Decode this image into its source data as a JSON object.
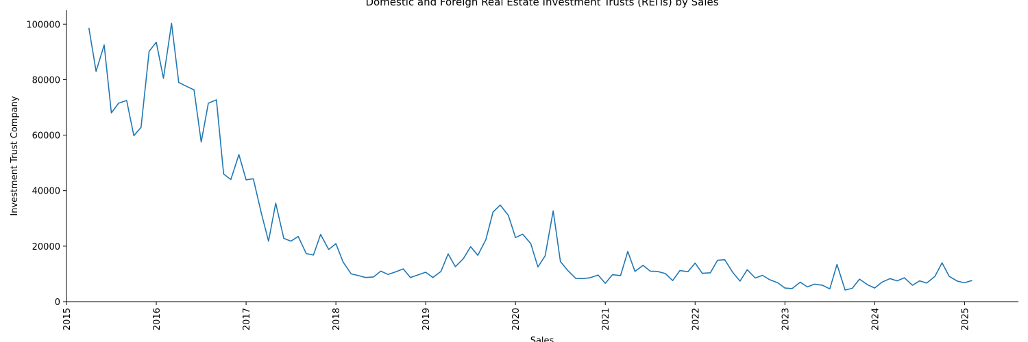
{
  "chart_data": {
    "type": "line",
    "title": "Domestic and Foreign Real Estate Investment Trusts (REITs) by Sales",
    "xlabel": "Sales",
    "ylabel": "Investment Trust Company",
    "xlim": [
      2015.0,
      2025.6
    ],
    "ylim": [
      0,
      105000
    ],
    "x_ticks": [
      2015,
      2016,
      2017,
      2018,
      2019,
      2020,
      2021,
      2022,
      2023,
      2024,
      2025
    ],
    "x_tick_labels": [
      "2015",
      "2016",
      "2017",
      "2018",
      "2019",
      "2020",
      "2021",
      "2022",
      "2023",
      "2024",
      "2025"
    ],
    "y_ticks": [
      0,
      20000,
      40000,
      60000,
      80000,
      100000
    ],
    "y_tick_labels": [
      "0",
      "20000",
      "40000",
      "60000",
      "80000",
      "100000"
    ],
    "grid": false,
    "series": [
      {
        "name": "Sales",
        "color": "#1f77b4",
        "x": [
          2015.25,
          2015.33,
          2015.42,
          2015.5,
          2015.58,
          2015.67,
          2015.75,
          2015.83,
          2015.92,
          2016.0,
          2016.08,
          2016.17,
          2016.25,
          2016.33,
          2016.42,
          2016.5,
          2016.58,
          2016.67,
          2016.75,
          2016.83,
          2016.92,
          2017.0,
          2017.08,
          2017.17,
          2017.25,
          2017.33,
          2017.42,
          2017.5,
          2017.58,
          2017.67,
          2017.75,
          2017.83,
          2017.92,
          2018.0,
          2018.08,
          2018.17,
          2018.25,
          2018.33,
          2018.42,
          2018.5,
          2018.58,
          2018.67,
          2018.75,
          2018.83,
          2018.92,
          2019.0,
          2019.08,
          2019.17,
          2019.25,
          2019.33,
          2019.42,
          2019.5,
          2019.58,
          2019.67,
          2019.75,
          2019.83,
          2019.92,
          2020.0,
          2020.08,
          2020.17,
          2020.25,
          2020.33,
          2020.42,
          2020.5,
          2020.58,
          2020.67,
          2020.75,
          2020.83,
          2020.92,
          2021.0,
          2021.08,
          2021.17,
          2021.25,
          2021.33,
          2021.42,
          2021.5,
          2021.58,
          2021.67,
          2021.75,
          2021.83,
          2021.92,
          2022.0,
          2022.08,
          2022.17,
          2022.25,
          2022.33,
          2022.42,
          2022.5,
          2022.58,
          2022.67,
          2022.75,
          2022.83,
          2022.92,
          2023.0,
          2023.08,
          2023.17,
          2023.25,
          2023.33,
          2023.42,
          2023.5,
          2023.58,
          2023.67,
          2023.75,
          2023.83,
          2023.92,
          2024.0,
          2024.08,
          2024.17,
          2024.25,
          2024.33,
          2024.42,
          2024.5,
          2024.58,
          2024.67,
          2024.75,
          2024.83,
          2024.92,
          2025.0,
          2025.08
        ],
        "y": [
          98500,
          83000,
          92500,
          68000,
          71500,
          72500,
          59800,
          62800,
          90200,
          93500,
          80500,
          100300,
          79000,
          77700,
          76300,
          57500,
          71500,
          72700,
          46000,
          44000,
          53000,
          43900,
          44300,
          31800,
          21800,
          35500,
          22800,
          21800,
          23500,
          17300,
          16800,
          24200,
          18800,
          20900,
          14300,
          10000,
          9400,
          8700,
          8900,
          11000,
          9800,
          10800,
          11800,
          8700,
          9700,
          10600,
          8700,
          10900,
          17200,
          12600,
          15500,
          19800,
          16700,
          22300,
          32300,
          34800,
          31100,
          23100,
          24300,
          20900,
          12500,
          16500,
          32700,
          14500,
          11300,
          8400,
          8300,
          8600,
          9600,
          6600,
          9700,
          9400,
          18100,
          10900,
          13100,
          11000,
          10900,
          10100,
          7600,
          11200,
          10800,
          13900,
          10200,
          10400,
          14900,
          15100,
          10500,
          7400,
          11500,
          8500,
          9500,
          7900,
          6800,
          4900,
          4700,
          7000,
          5300,
          6300,
          5900,
          4600,
          13400,
          4200,
          4800,
          8100,
          6100,
          4900,
          7000,
          8300,
          7500,
          8600,
          5900,
          7500,
          6700,
          9100,
          14000,
          9100,
          7400,
          6800,
          7600
        ]
      }
    ]
  }
}
